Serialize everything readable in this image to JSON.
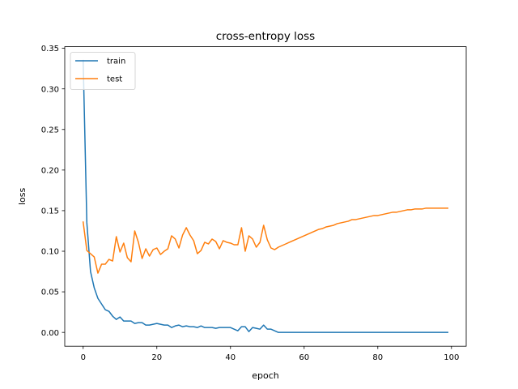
{
  "chart_data": {
    "type": "line",
    "title": "cross-entropy loss",
    "xlabel": "epoch",
    "ylabel": "loss",
    "xlim": [
      -5,
      104
    ],
    "ylim": [
      -0.017,
      0.352
    ],
    "xticks": [
      0,
      20,
      40,
      60,
      80,
      100
    ],
    "yticks": [
      0.0,
      0.05,
      0.1,
      0.15,
      0.2,
      0.25,
      0.3,
      0.35
    ],
    "ytick_labels": [
      "0.00",
      "0.05",
      "0.10",
      "0.15",
      "0.20",
      "0.25",
      "0.30",
      "0.35"
    ],
    "grid": false,
    "legend_position": "top-left",
    "series": [
      {
        "name": "train",
        "color": "#1f77b4",
        "values": [
          0.335,
          0.135,
          0.075,
          0.055,
          0.042,
          0.035,
          0.028,
          0.026,
          0.02,
          0.016,
          0.019,
          0.014,
          0.014,
          0.014,
          0.011,
          0.012,
          0.012,
          0.009,
          0.009,
          0.01,
          0.011,
          0.01,
          0.009,
          0.009,
          0.006,
          0.008,
          0.009,
          0.007,
          0.008,
          0.007,
          0.007,
          0.006,
          0.008,
          0.006,
          0.006,
          0.006,
          0.005,
          0.006,
          0.006,
          0.006,
          0.006,
          0.004,
          0.002,
          0.007,
          0.007,
          0.001,
          0.006,
          0.005,
          0.004,
          0.009,
          0.004,
          0.004,
          0.002,
          0.0,
          0.0,
          0.0,
          0.0,
          0.0,
          0.0,
          0.0,
          0.0,
          0.0,
          0.0,
          0.0,
          0.0,
          0.0,
          0.0,
          0.0,
          0.0,
          0.0,
          0.0,
          0.0,
          0.0,
          0.0,
          0.0,
          0.0,
          0.0,
          0.0,
          0.0,
          0.0,
          0.0,
          0.0,
          0.0,
          0.0,
          0.0,
          0.0,
          0.0,
          0.0,
          0.0,
          0.0,
          0.0,
          0.0,
          0.0,
          0.0,
          0.0,
          0.0,
          0.0,
          0.0,
          0.0,
          0.0
        ]
      },
      {
        "name": "test",
        "color": "#ff7f0e",
        "values": [
          0.136,
          0.101,
          0.097,
          0.093,
          0.073,
          0.084,
          0.084,
          0.09,
          0.088,
          0.118,
          0.099,
          0.11,
          0.092,
          0.087,
          0.125,
          0.111,
          0.091,
          0.103,
          0.094,
          0.102,
          0.104,
          0.096,
          0.1,
          0.103,
          0.119,
          0.115,
          0.104,
          0.12,
          0.129,
          0.12,
          0.113,
          0.097,
          0.101,
          0.111,
          0.109,
          0.115,
          0.112,
          0.103,
          0.113,
          0.111,
          0.11,
          0.108,
          0.108,
          0.129,
          0.1,
          0.119,
          0.115,
          0.105,
          0.111,
          0.132,
          0.114,
          0.104,
          0.102,
          0.105,
          0.107,
          0.109,
          0.111,
          0.113,
          0.115,
          0.117,
          0.119,
          0.121,
          0.123,
          0.125,
          0.127,
          0.128,
          0.13,
          0.131,
          0.132,
          0.134,
          0.135,
          0.136,
          0.137,
          0.139,
          0.139,
          0.14,
          0.141,
          0.142,
          0.143,
          0.144,
          0.144,
          0.145,
          0.146,
          0.147,
          0.148,
          0.148,
          0.149,
          0.15,
          0.151,
          0.151,
          0.152,
          0.152,
          0.152,
          0.153,
          0.153,
          0.153,
          0.153,
          0.153,
          0.153,
          0.153
        ]
      }
    ]
  }
}
